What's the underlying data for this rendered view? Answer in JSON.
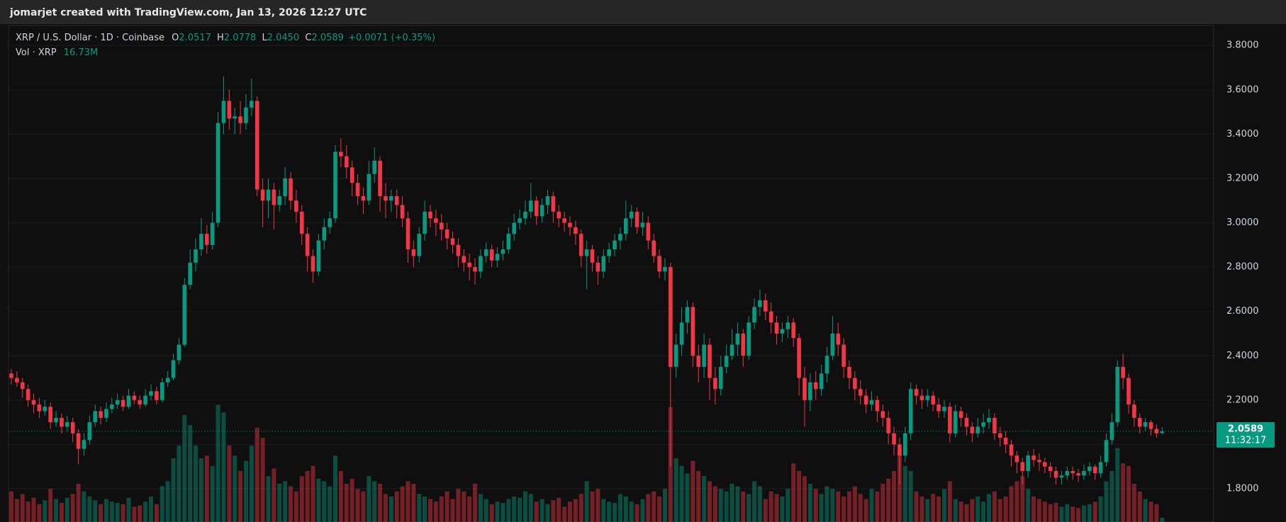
{
  "attribution": "jomarjet created with TradingView.com, Jan 13, 2026 12:27 UTC",
  "chart_data": {
    "type": "candlestick",
    "legend": {
      "symbol": "XRP / U.S. Dollar · 1D · Coinbase",
      "ohlc": [
        {
          "key": "O",
          "value": "2.0517"
        },
        {
          "key": "H",
          "value": "2.0778"
        },
        {
          "key": "L",
          "value": "2.0450"
        },
        {
          "key": "C",
          "value": "2.0589"
        }
      ],
      "change": "+0.0071 (+0.35%)",
      "volume_label": "Vol · XRP",
      "volume_value": "16.73M"
    },
    "last_price_label": "2.0589",
    "countdown": "11:32:17",
    "up_color": "#089981",
    "down_color": "#f23645",
    "ylim": [
      1.65,
      3.89
    ],
    "yticks": [
      {
        "value": 1.8,
        "label": "1.8000"
      },
      {
        "value": 2.0,
        "label": "2.0000"
      },
      {
        "value": 2.2,
        "label": "2.2000"
      },
      {
        "value": 2.4,
        "label": "2.4000"
      },
      {
        "value": 2.6,
        "label": "2.6000"
      },
      {
        "value": 2.8,
        "label": "2.8000"
      },
      {
        "value": 3.0,
        "label": "3.0000"
      },
      {
        "value": 3.2,
        "label": "3.2000"
      },
      {
        "value": 3.4,
        "label": "3.4000"
      },
      {
        "value": 3.6,
        "label": "3.6000"
      },
      {
        "value": 3.8,
        "label": "3.8000"
      }
    ],
    "grid": true,
    "vlim": [
      0,
      1000
    ],
    "open": [
      2.32,
      2.3,
      2.28,
      2.25,
      2.2,
      2.18,
      2.15,
      2.17,
      2.1,
      2.12,
      2.08,
      2.1,
      2.05,
      1.98,
      2.02,
      2.1,
      2.15,
      2.12,
      2.16,
      2.18,
      2.2,
      2.17,
      2.22,
      2.2,
      2.18,
      2.22,
      2.24,
      2.2,
      2.28,
      2.3,
      2.38,
      2.45,
      2.72,
      2.82,
      2.88,
      2.95,
      2.9,
      3.0,
      3.45,
      3.55,
      3.47,
      3.48,
      3.45,
      3.52,
      3.55,
      3.15,
      3.1,
      3.15,
      3.08,
      3.12,
      3.2,
      3.1,
      3.05,
      2.95,
      2.85,
      2.78,
      2.92,
      2.98,
      3.02,
      3.32,
      3.3,
      3.25,
      3.18,
      3.12,
      3.1,
      3.22,
      3.28,
      3.12,
      3.1,
      3.12,
      3.08,
      3.02,
      2.88,
      2.85,
      2.95,
      3.05,
      3.02,
      3.0,
      2.97,
      2.93,
      2.9,
      2.85,
      2.82,
      2.8,
      2.78,
      2.85,
      2.88,
      2.83,
      2.86,
      2.88,
      2.95,
      3.0,
      3.02,
      3.05,
      3.1,
      3.03,
      3.08,
      3.12,
      3.05,
      3.02,
      3.0,
      2.98,
      2.95,
      2.85,
      2.88,
      2.82,
      2.78,
      2.85,
      2.88,
      2.92,
      2.95,
      3.02,
      3.05,
      2.98,
      3.0,
      2.92,
      2.85,
      2.78,
      2.8,
      2.35,
      2.45,
      2.55,
      2.62,
      2.4,
      2.35,
      2.45,
      2.3,
      2.25,
      2.35,
      2.4,
      2.45,
      2.5,
      2.4,
      2.55,
      2.62,
      2.65,
      2.6,
      2.55,
      2.5,
      2.52,
      2.55,
      2.48,
      2.3,
      2.2,
      2.28,
      2.25,
      2.32,
      2.4,
      2.5,
      2.45,
      2.35,
      2.3,
      2.25,
      2.22,
      2.18,
      2.2,
      2.15,
      2.12,
      2.05,
      2.0,
      1.95,
      2.05,
      2.25,
      2.22,
      2.2,
      2.22,
      2.18,
      2.15,
      2.17,
      2.05,
      2.15,
      2.12,
      2.08,
      2.05,
      2.08,
      2.1,
      2.12,
      2.05,
      2.03,
      2.0,
      1.95,
      1.92,
      1.88,
      1.95,
      1.93,
      1.92,
      1.9,
      1.88,
      1.85,
      1.86,
      1.88,
      1.87,
      1.86,
      1.88,
      1.9,
      1.87,
      1.92,
      2.02,
      2.1,
      2.35,
      2.3,
      2.18,
      2.12,
      2.08,
      2.1,
      2.07,
      2.0517
    ],
    "high": [
      2.34,
      2.33,
      2.3,
      2.27,
      2.23,
      2.21,
      2.2,
      2.19,
      2.15,
      2.14,
      2.13,
      2.12,
      2.07,
      2.05,
      2.13,
      2.18,
      2.17,
      2.19,
      2.21,
      2.23,
      2.22,
      2.25,
      2.24,
      2.22,
      2.25,
      2.27,
      2.26,
      2.3,
      2.33,
      2.41,
      2.48,
      2.75,
      2.88,
      2.93,
      3.02,
      2.99,
      3.05,
      3.5,
      3.66,
      3.6,
      3.52,
      3.55,
      3.58,
      3.65,
      3.57,
      3.2,
      3.2,
      3.18,
      3.15,
      3.25,
      3.23,
      3.15,
      3.08,
      2.98,
      2.88,
      2.95,
      3.02,
      3.05,
      3.35,
      3.38,
      3.35,
      3.28,
      3.22,
      3.16,
      3.28,
      3.34,
      3.3,
      3.18,
      3.15,
      3.15,
      3.12,
      3.05,
      2.92,
      2.98,
      3.1,
      3.08,
      3.06,
      3.04,
      3.0,
      2.96,
      2.93,
      2.88,
      2.86,
      2.84,
      2.88,
      2.91,
      2.9,
      2.89,
      2.92,
      2.98,
      3.04,
      3.06,
      3.1,
      3.18,
      3.12,
      3.11,
      3.15,
      3.14,
      3.08,
      3.05,
      3.03,
      3.01,
      2.97,
      2.92,
      2.9,
      2.85,
      2.88,
      2.91,
      2.95,
      2.98,
      3.1,
      3.08,
      3.07,
      3.05,
      3.03,
      2.95,
      2.88,
      2.84,
      2.82,
      2.5,
      2.62,
      2.65,
      2.64,
      2.45,
      2.5,
      2.48,
      2.35,
      2.4,
      2.45,
      2.52,
      2.55,
      2.52,
      2.58,
      2.66,
      2.7,
      2.68,
      2.64,
      2.58,
      2.55,
      2.58,
      2.57,
      2.5,
      2.35,
      2.32,
      2.33,
      2.36,
      2.44,
      2.58,
      2.55,
      2.48,
      2.38,
      2.33,
      2.29,
      2.25,
      2.24,
      2.22,
      2.18,
      2.15,
      2.08,
      2.03,
      2.08,
      2.28,
      2.27,
      2.25,
      2.25,
      2.24,
      2.21,
      2.2,
      2.19,
      2.18,
      2.17,
      2.14,
      2.1,
      2.12,
      2.14,
      2.16,
      2.14,
      2.08,
      2.06,
      2.02,
      1.97,
      1.94,
      1.97,
      1.98,
      1.96,
      1.94,
      1.92,
      1.9,
      1.88,
      1.9,
      1.9,
      1.89,
      1.91,
      1.92,
      1.91,
      1.95,
      2.05,
      2.14,
      2.38,
      2.41,
      2.32,
      2.2,
      2.14,
      2.12,
      2.11,
      2.09,
      2.0778
    ],
    "low": [
      2.27,
      2.26,
      2.21,
      2.17,
      2.14,
      2.12,
      2.13,
      2.07,
      2.08,
      2.05,
      2.06,
      2.01,
      1.91,
      1.95,
      2.0,
      2.08,
      2.09,
      2.1,
      2.14,
      2.16,
      2.15,
      2.16,
      2.18,
      2.16,
      2.17,
      2.2,
      2.18,
      2.19,
      2.26,
      2.29,
      2.36,
      2.44,
      2.7,
      2.78,
      2.85,
      2.86,
      2.88,
      2.98,
      3.4,
      3.42,
      3.4,
      3.4,
      3.42,
      3.48,
      3.12,
      2.98,
      3.02,
      2.97,
      3.05,
      3.08,
      3.06,
      3.0,
      2.9,
      2.78,
      2.73,
      2.76,
      2.88,
      2.95,
      3.0,
      3.25,
      3.2,
      3.12,
      3.08,
      3.04,
      3.08,
      3.18,
      3.05,
      3.02,
      3.05,
      3.02,
      2.98,
      2.82,
      2.8,
      2.82,
      2.92,
      2.98,
      2.94,
      2.92,
      2.88,
      2.86,
      2.8,
      2.78,
      2.74,
      2.72,
      2.75,
      2.82,
      2.8,
      2.8,
      2.83,
      2.86,
      2.92,
      2.97,
      2.99,
      3.02,
      2.99,
      3.0,
      3.04,
      3.0,
      2.98,
      2.96,
      2.94,
      2.9,
      2.8,
      2.7,
      2.78,
      2.72,
      2.75,
      2.82,
      2.85,
      2.88,
      2.92,
      2.98,
      2.95,
      2.94,
      2.88,
      2.82,
      2.75,
      2.74,
      1.9,
      2.3,
      2.4,
      2.5,
      2.35,
      2.28,
      2.3,
      2.2,
      2.18,
      2.22,
      2.32,
      2.38,
      2.4,
      2.35,
      2.38,
      2.52,
      2.58,
      2.56,
      2.5,
      2.45,
      2.46,
      2.48,
      2.44,
      2.22,
      2.08,
      2.15,
      2.2,
      2.22,
      2.28,
      2.38,
      2.4,
      2.3,
      2.25,
      2.2,
      2.18,
      2.14,
      2.15,
      2.1,
      2.08,
      2.0,
      1.95,
      1.82,
      1.92,
      2.02,
      2.18,
      2.16,
      2.17,
      2.15,
      2.12,
      2.12,
      2.01,
      2.03,
      2.08,
      2.04,
      2.01,
      2.03,
      2.05,
      2.07,
      2.02,
      1.99,
      1.96,
      1.9,
      1.87,
      1.82,
      1.85,
      1.9,
      1.88,
      1.87,
      1.85,
      1.82,
      1.82,
      1.84,
      1.84,
      1.83,
      1.84,
      1.86,
      1.84,
      1.85,
      1.9,
      2.0,
      2.08,
      2.25,
      2.14,
      2.08,
      2.05,
      2.06,
      2.04,
      2.03,
      2.045
    ],
    "close": [
      2.3,
      2.28,
      2.25,
      2.2,
      2.18,
      2.15,
      2.17,
      2.1,
      2.12,
      2.08,
      2.1,
      2.05,
      1.98,
      2.02,
      2.1,
      2.15,
      2.12,
      2.16,
      2.18,
      2.2,
      2.17,
      2.22,
      2.2,
      2.18,
      2.22,
      2.24,
      2.2,
      2.28,
      2.3,
      2.38,
      2.45,
      2.72,
      2.82,
      2.88,
      2.95,
      2.9,
      3.0,
      3.45,
      3.55,
      3.47,
      3.48,
      3.45,
      3.52,
      3.55,
      3.15,
      3.1,
      3.15,
      3.08,
      3.12,
      3.2,
      3.1,
      3.05,
      2.95,
      2.85,
      2.78,
      2.92,
      2.98,
      3.02,
      3.32,
      3.3,
      3.25,
      3.18,
      3.12,
      3.1,
      3.22,
      3.28,
      3.12,
      3.1,
      3.12,
      3.08,
      3.02,
      2.88,
      2.85,
      2.95,
      3.05,
      3.02,
      3.0,
      2.97,
      2.93,
      2.9,
      2.85,
      2.82,
      2.8,
      2.78,
      2.85,
      2.88,
      2.83,
      2.86,
      2.88,
      2.95,
      3.0,
      3.02,
      3.05,
      3.1,
      3.03,
      3.08,
      3.12,
      3.05,
      3.02,
      3.0,
      2.98,
      2.95,
      2.85,
      2.88,
      2.82,
      2.78,
      2.85,
      2.88,
      2.92,
      2.95,
      3.02,
      3.05,
      2.98,
      3.0,
      2.92,
      2.85,
      2.78,
      2.8,
      2.35,
      2.45,
      2.55,
      2.62,
      2.4,
      2.35,
      2.45,
      2.3,
      2.25,
      2.35,
      2.4,
      2.45,
      2.5,
      2.4,
      2.55,
      2.62,
      2.65,
      2.6,
      2.55,
      2.5,
      2.52,
      2.55,
      2.48,
      2.3,
      2.2,
      2.28,
      2.25,
      2.32,
      2.4,
      2.5,
      2.45,
      2.35,
      2.3,
      2.25,
      2.22,
      2.18,
      2.2,
      2.15,
      2.12,
      2.05,
      2.0,
      1.95,
      2.05,
      2.25,
      2.22,
      2.2,
      2.22,
      2.18,
      2.15,
      2.17,
      2.05,
      2.15,
      2.12,
      2.08,
      2.05,
      2.08,
      2.1,
      2.12,
      2.05,
      2.03,
      2.0,
      1.95,
      1.92,
      1.88,
      1.95,
      1.93,
      1.92,
      1.9,
      1.88,
      1.85,
      1.86,
      1.88,
      1.87,
      1.86,
      1.88,
      1.9,
      1.87,
      1.92,
      2.02,
      2.1,
      2.35,
      2.3,
      2.18,
      2.12,
      2.08,
      2.1,
      2.07,
      2.05,
      2.0589
    ],
    "volume": [
      120,
      90,
      110,
      80,
      95,
      70,
      85,
      130,
      90,
      75,
      95,
      110,
      150,
      120,
      100,
      85,
      70,
      90,
      80,
      75,
      70,
      95,
      60,
      65,
      80,
      100,
      70,
      140,
      160,
      250,
      300,
      420,
      380,
      300,
      250,
      260,
      220,
      460,
      430,
      300,
      260,
      200,
      240,
      300,
      370,
      330,
      180,
      210,
      150,
      160,
      140,
      120,
      180,
      200,
      220,
      170,
      160,
      140,
      260,
      200,
      150,
      170,
      130,
      120,
      180,
      160,
      150,
      110,
      100,
      120,
      140,
      160,
      150,
      110,
      100,
      90,
      80,
      100,
      120,
      90,
      130,
      120,
      100,
      150,
      110,
      90,
      70,
      80,
      75,
      90,
      100,
      95,
      120,
      110,
      80,
      90,
      70,
      85,
      95,
      60,
      80,
      90,
      110,
      160,
      120,
      130,
      90,
      80,
      75,
      110,
      100,
      80,
      70,
      90,
      110,
      120,
      100,
      130,
      450,
      250,
      220,
      190,
      240,
      200,
      180,
      160,
      140,
      130,
      120,
      150,
      140,
      120,
      110,
      160,
      140,
      90,
      120,
      110,
      100,
      130,
      230,
      200,
      180,
      150,
      130,
      110,
      140,
      130,
      120,
      100,
      120,
      140,
      110,
      90,
      130,
      120,
      150,
      170,
      200,
      280,
      220,
      200,
      120,
      100,
      90,
      110,
      100,
      130,
      160,
      90,
      80,
      70,
      90,
      100,
      80,
      110,
      120,
      90,
      100,
      140,
      160,
      180,
      130,
      100,
      90,
      80,
      70,
      75,
      60,
      70,
      60,
      55,
      65,
      70,
      80,
      100,
      160,
      200,
      290,
      230,
      220,
      150,
      120,
      90,
      80,
      70,
      16.73
    ]
  }
}
